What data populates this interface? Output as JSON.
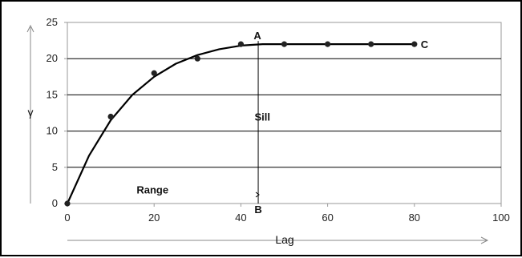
{
  "chart_data": {
    "type": "scatter",
    "title": "",
    "xlabel": "Lag",
    "ylabel": "γ",
    "xlim": [
      0,
      100
    ],
    "ylim": [
      0,
      25
    ],
    "x_ticks": [
      "0",
      "20",
      "40",
      "60",
      "80",
      "100"
    ],
    "y_ticks": [
      "0",
      "5",
      "10",
      "15",
      "20",
      "25"
    ],
    "grid": "horizontal",
    "legend": "none",
    "series": [
      {
        "type": "scatter",
        "x": [
          0,
          10,
          20,
          30,
          40,
          50,
          60,
          70,
          80
        ],
        "y": [
          0,
          12,
          18,
          20,
          22,
          22,
          22,
          22,
          22
        ]
      },
      {
        "type": "line",
        "x": [
          0,
          5,
          10,
          15,
          20,
          25,
          30,
          35,
          40,
          45,
          50,
          60,
          70,
          80
        ],
        "y": [
          0,
          6.6,
          11.5,
          15.0,
          17.5,
          19.3,
          20.5,
          21.3,
          21.8,
          22,
          22,
          22,
          22,
          22
        ]
      }
    ],
    "annotations": [
      {
        "label": "A",
        "x": 44,
        "y": 22
      },
      {
        "label": "B",
        "x": 44,
        "y": 0
      },
      {
        "label": "C",
        "x": 80,
        "y": 22
      },
      {
        "label": "Sill",
        "x": 45,
        "y": 12
      },
      {
        "label": "Range",
        "x": 20,
        "y": 1.5
      }
    ],
    "colors": {
      "line": "#000000",
      "marker": "#222222",
      "grid": "#000000",
      "axis_arrow": "#888888"
    }
  }
}
